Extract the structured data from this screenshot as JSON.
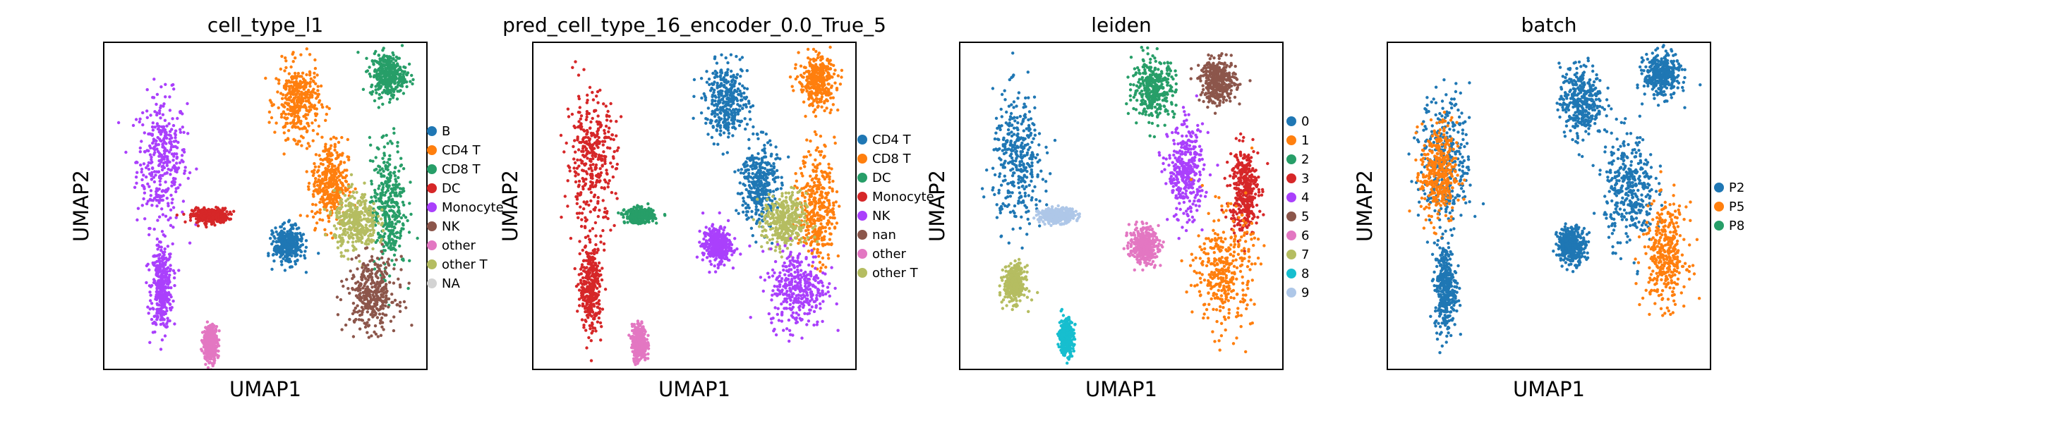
{
  "chart_data": [
    {
      "type": "scatter",
      "title": "cell_type_l1",
      "xlabel": "UMAP1",
      "ylabel": "UMAP2",
      "legend_placement": "right",
      "grid": false,
      "legend": [
        {
          "label": "B",
          "color": "#1f77b4"
        },
        {
          "label": "CD4 T",
          "color": "#ff7f0e"
        },
        {
          "label": "CD8 T",
          "color": "#279e68"
        },
        {
          "label": "DC",
          "color": "#d62728"
        },
        {
          "label": "Monocyte",
          "color": "#aa40fc"
        },
        {
          "label": "NK",
          "color": "#8c564b"
        },
        {
          "label": "other",
          "color": "#e377c2"
        },
        {
          "label": "other T",
          "color": "#b5bd61"
        },
        {
          "label": "NA",
          "color": "#d3d3d3"
        }
      ],
      "clusters": [
        {
          "label": "Monocyte",
          "cx": 0.18,
          "cy": 0.64,
          "rx": 0.07,
          "ry": 0.18
        },
        {
          "label": "Monocyte",
          "cx": 0.18,
          "cy": 0.25,
          "rx": 0.03,
          "ry": 0.12
        },
        {
          "label": "DC",
          "cx": 0.33,
          "cy": 0.47,
          "rx": 0.05,
          "ry": 0.02
        },
        {
          "label": "CD4 T",
          "cx": 0.6,
          "cy": 0.82,
          "rx": 0.06,
          "ry": 0.1
        },
        {
          "label": "CD4 T",
          "cx": 0.7,
          "cy": 0.57,
          "rx": 0.05,
          "ry": 0.12
        },
        {
          "label": "CD8 T",
          "cx": 0.88,
          "cy": 0.9,
          "rx": 0.05,
          "ry": 0.06
        },
        {
          "label": "CD8 T",
          "cx": 0.88,
          "cy": 0.5,
          "rx": 0.05,
          "ry": 0.18
        },
        {
          "label": "other T",
          "cx": 0.78,
          "cy": 0.45,
          "rx": 0.06,
          "ry": 0.08
        },
        {
          "label": "NK",
          "cx": 0.83,
          "cy": 0.23,
          "rx": 0.07,
          "ry": 0.1
        },
        {
          "label": "B",
          "cx": 0.57,
          "cy": 0.38,
          "rx": 0.04,
          "ry": 0.05
        },
        {
          "label": "other",
          "cx": 0.33,
          "cy": 0.08,
          "rx": 0.02,
          "ry": 0.05
        }
      ]
    },
    {
      "type": "scatter",
      "title": "pred_cell_type_16_encoder_0.0_True_5",
      "xlabel": "UMAP1",
      "ylabel": "UMAP2",
      "legend_placement": "right",
      "grid": false,
      "legend": [
        {
          "label": "CD4 T",
          "color": "#1f77b4"
        },
        {
          "label": "CD8 T",
          "color": "#ff7f0e"
        },
        {
          "label": "DC",
          "color": "#279e68"
        },
        {
          "label": "Monocyte",
          "color": "#d62728"
        },
        {
          "label": "NK",
          "color": "#aa40fc"
        },
        {
          "label": "nan",
          "color": "#8c564b"
        },
        {
          "label": "other",
          "color": "#e377c2"
        },
        {
          "label": "other T",
          "color": "#b5bd61"
        }
      ],
      "clusters": [
        {
          "label": "Monocyte",
          "cx": 0.18,
          "cy": 0.64,
          "rx": 0.07,
          "ry": 0.18
        },
        {
          "label": "Monocyte",
          "cx": 0.18,
          "cy": 0.25,
          "rx": 0.03,
          "ry": 0.12
        },
        {
          "label": "DC",
          "cx": 0.33,
          "cy": 0.47,
          "rx": 0.04,
          "ry": 0.02
        },
        {
          "label": "CD4 T",
          "cx": 0.6,
          "cy": 0.82,
          "rx": 0.06,
          "ry": 0.1
        },
        {
          "label": "CD4 T",
          "cx": 0.7,
          "cy": 0.57,
          "rx": 0.05,
          "ry": 0.12
        },
        {
          "label": "CD8 T",
          "cx": 0.88,
          "cy": 0.88,
          "rx": 0.05,
          "ry": 0.07
        },
        {
          "label": "CD8 T",
          "cx": 0.88,
          "cy": 0.5,
          "rx": 0.05,
          "ry": 0.16
        },
        {
          "label": "other T",
          "cx": 0.78,
          "cy": 0.45,
          "rx": 0.06,
          "ry": 0.08
        },
        {
          "label": "NK",
          "cx": 0.82,
          "cy": 0.25,
          "rx": 0.08,
          "ry": 0.11
        },
        {
          "label": "NK",
          "cx": 0.57,
          "cy": 0.38,
          "rx": 0.04,
          "ry": 0.05
        },
        {
          "label": "other",
          "cx": 0.33,
          "cy": 0.08,
          "rx": 0.02,
          "ry": 0.05
        }
      ]
    },
    {
      "type": "scatter",
      "title": "leiden",
      "xlabel": "UMAP1",
      "ylabel": "UMAP2",
      "legend_placement": "right",
      "grid": false,
      "legend": [
        {
          "label": "0",
          "color": "#1f77b4"
        },
        {
          "label": "1",
          "color": "#ff7f0e"
        },
        {
          "label": "2",
          "color": "#279e68"
        },
        {
          "label": "3",
          "color": "#d62728"
        },
        {
          "label": "4",
          "color": "#aa40fc"
        },
        {
          "label": "5",
          "color": "#8c564b"
        },
        {
          "label": "6",
          "color": "#e377c2"
        },
        {
          "label": "7",
          "color": "#b5bd61"
        },
        {
          "label": "8",
          "color": "#17becf"
        },
        {
          "label": "9",
          "color": "#aec7e8"
        }
      ],
      "clusters": [
        {
          "label": "0",
          "cx": 0.18,
          "cy": 0.64,
          "rx": 0.07,
          "ry": 0.18
        },
        {
          "label": "7",
          "cx": 0.17,
          "cy": 0.26,
          "rx": 0.03,
          "ry": 0.05
        },
        {
          "label": "9",
          "cx": 0.3,
          "cy": 0.47,
          "rx": 0.05,
          "ry": 0.02
        },
        {
          "label": "8",
          "cx": 0.33,
          "cy": 0.1,
          "rx": 0.02,
          "ry": 0.05
        },
        {
          "label": "2",
          "cx": 0.6,
          "cy": 0.86,
          "rx": 0.06,
          "ry": 0.08
        },
        {
          "label": "4",
          "cx": 0.7,
          "cy": 0.6,
          "rx": 0.05,
          "ry": 0.13
        },
        {
          "label": "5",
          "cx": 0.8,
          "cy": 0.88,
          "rx": 0.05,
          "ry": 0.06
        },
        {
          "label": "3",
          "cx": 0.88,
          "cy": 0.55,
          "rx": 0.04,
          "ry": 0.12
        },
        {
          "label": "1",
          "cx": 0.82,
          "cy": 0.3,
          "rx": 0.08,
          "ry": 0.16
        },
        {
          "label": "6",
          "cx": 0.57,
          "cy": 0.38,
          "rx": 0.04,
          "ry": 0.05
        }
      ]
    },
    {
      "type": "scatter",
      "title": "batch",
      "xlabel": "UMAP1",
      "ylabel": "UMAP2",
      "legend_placement": "right",
      "grid": false,
      "legend": [
        {
          "label": "P2",
          "color": "#1f77b4"
        },
        {
          "label": "P5",
          "color": "#ff7f0e"
        },
        {
          "label": "P8",
          "color": "#279e68"
        }
      ],
      "clusters": [
        {
          "label": "P2",
          "cx": 0.18,
          "cy": 0.64,
          "rx": 0.07,
          "ry": 0.18
        },
        {
          "label": "P5",
          "cx": 0.16,
          "cy": 0.6,
          "rx": 0.05,
          "ry": 0.14
        },
        {
          "label": "P2",
          "cx": 0.18,
          "cy": 0.25,
          "rx": 0.03,
          "ry": 0.12
        },
        {
          "label": "P2",
          "cx": 0.6,
          "cy": 0.82,
          "rx": 0.06,
          "ry": 0.1
        },
        {
          "label": "P2",
          "cx": 0.75,
          "cy": 0.55,
          "rx": 0.07,
          "ry": 0.15
        },
        {
          "label": "P5",
          "cx": 0.86,
          "cy": 0.35,
          "rx": 0.06,
          "ry": 0.14
        },
        {
          "label": "P2",
          "cx": 0.85,
          "cy": 0.9,
          "rx": 0.05,
          "ry": 0.06
        },
        {
          "label": "P2",
          "cx": 0.57,
          "cy": 0.38,
          "rx": 0.04,
          "ry": 0.05
        }
      ]
    }
  ]
}
